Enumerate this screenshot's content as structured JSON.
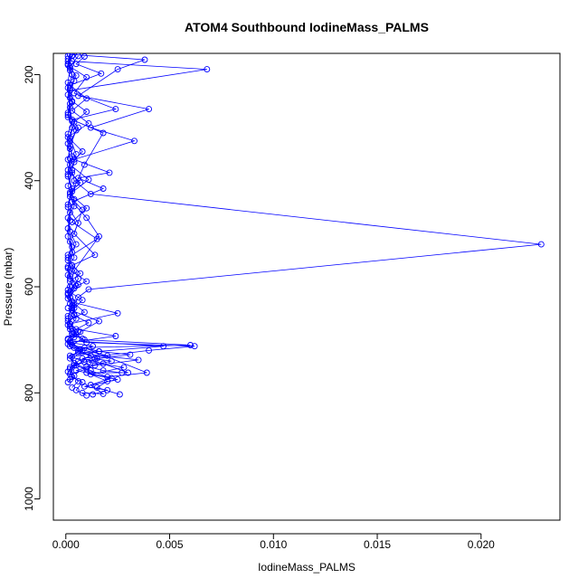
{
  "chart_data": {
    "type": "line",
    "title": "ATOM4 Southbound IodineMass_PALMS",
    "xlabel": "IodineMass_PALMS",
    "ylabel": "Pressure (mbar)",
    "xlim": [
      -0.0006,
      0.0238
    ],
    "ylim": [
      1040,
      160
    ],
    "y_reversed": true,
    "grid": false,
    "x_ticks": [
      {
        "value": 0.0,
        "label": "0.000"
      },
      {
        "value": 0.005,
        "label": "0.005"
      },
      {
        "value": 0.01,
        "label": "0.010"
      },
      {
        "value": 0.015,
        "label": "0.015"
      },
      {
        "value": 0.02,
        "label": "0.020"
      }
    ],
    "y_ticks": [
      {
        "value": 200,
        "label": "200"
      },
      {
        "value": 400,
        "label": "400"
      },
      {
        "value": 600,
        "label": "600"
      },
      {
        "value": 800,
        "label": "800"
      },
      {
        "value": 1000,
        "label": "1000"
      }
    ],
    "series_color": "#0000ff",
    "series": [
      {
        "points": [
          [
            0.001,
            805
          ],
          [
            0.0005,
            795
          ],
          [
            0.0008,
            780
          ],
          [
            0.0003,
            770
          ],
          [
            0.0002,
            755
          ],
          [
            0.0006,
            740
          ],
          [
            0.0012,
            730
          ],
          [
            0.0004,
            715
          ],
          [
            0.006,
            710
          ],
          [
            0.0009,
            700
          ],
          [
            0.0003,
            690
          ],
          [
            0.0002,
            675
          ],
          [
            0.0005,
            660
          ],
          [
            0.0003,
            640
          ],
          [
            0.0006,
            620
          ],
          [
            0.0011,
            605
          ],
          [
            0.0229,
            520
          ],
          [
            0.0012,
            425
          ],
          [
            0.0004,
            400
          ],
          [
            0.0003,
            380
          ],
          [
            0.0005,
            350
          ],
          [
            0.0002,
            320
          ],
          [
            0.0004,
            290
          ],
          [
            0.001,
            270
          ],
          [
            0.0003,
            250
          ],
          [
            0.0002,
            230
          ],
          [
            0.0068,
            190
          ],
          [
            0.0003,
            175
          ],
          [
            0.0001,
            165
          ]
        ]
      },
      {
        "points": [
          [
            0.0026,
            803
          ],
          [
            0.0015,
            790
          ],
          [
            0.002,
            778
          ],
          [
            0.001,
            762
          ],
          [
            0.003,
            762
          ],
          [
            0.0018,
            745
          ],
          [
            0.0008,
            735
          ],
          [
            0.004,
            720
          ],
          [
            0.0062,
            712
          ],
          [
            0.001,
            705
          ],
          [
            0.0005,
            690
          ],
          [
            0.0002,
            670
          ],
          [
            0.0025,
            650
          ],
          [
            0.0004,
            630
          ],
          [
            0.0002,
            600
          ],
          [
            0.0004,
            570
          ],
          [
            0.0016,
            505
          ],
          [
            0.001,
            470
          ],
          [
            0.0003,
            440
          ],
          [
            0.0018,
            415
          ],
          [
            0.0006,
            395
          ],
          [
            0.0021,
            385
          ],
          [
            0.0004,
            360
          ],
          [
            0.0033,
            325
          ],
          [
            0.0012,
            300
          ],
          [
            0.004,
            265
          ],
          [
            0.0006,
            240
          ],
          [
            0.0025,
            190
          ],
          [
            0.0038,
            172
          ],
          [
            0.0002,
            162
          ]
        ]
      },
      {
        "points": [
          [
            0.0008,
            800
          ],
          [
            0.0018,
            802
          ],
          [
            0.0012,
            785
          ],
          [
            0.0022,
            772
          ],
          [
            0.0005,
            758
          ],
          [
            0.0014,
            748
          ],
          [
            0.0035,
            738
          ],
          [
            0.0006,
            725
          ],
          [
            0.0047,
            712
          ],
          [
            0.0002,
            702
          ],
          [
            0.0007,
            685
          ],
          [
            0.0016,
            665
          ],
          [
            0.0003,
            645
          ],
          [
            0.0008,
            625
          ],
          [
            0.0002,
            610
          ],
          [
            0.0006,
            585
          ],
          [
            0.0003,
            560
          ],
          [
            0.0014,
            540
          ],
          [
            0.0004,
            500
          ],
          [
            0.0008,
            455
          ],
          [
            0.0002,
            430
          ],
          [
            0.0005,
            405
          ],
          [
            0.0009,
            370
          ],
          [
            0.0018,
            310
          ],
          [
            0.0003,
            285
          ],
          [
            0.0024,
            265
          ],
          [
            0.0004,
            235
          ],
          [
            0.001,
            205
          ],
          [
            0.0002,
            185
          ],
          [
            0.0006,
            165
          ]
        ]
      },
      {
        "points": [
          [
            0.0001,
            780
          ],
          [
            0.0004,
            768
          ],
          [
            0.0002,
            752
          ],
          [
            0.0009,
            742
          ],
          [
            0.0003,
            732
          ],
          [
            0.0016,
            722
          ],
          [
            0.0001,
            708
          ],
          [
            0.0004,
            695
          ],
          [
            0.0002,
            680
          ],
          [
            0.0001,
            660
          ],
          [
            0.0003,
            635
          ],
          [
            0.0001,
            612
          ],
          [
            0.0002,
            590
          ],
          [
            0.0007,
            575
          ],
          [
            0.0001,
            550
          ],
          [
            0.0003,
            525
          ],
          [
            0.0001,
            490
          ],
          [
            0.0002,
            460
          ],
          [
            0.0004,
            435
          ],
          [
            0.0001,
            410
          ],
          [
            0.0003,
            385
          ],
          [
            0.0001,
            360
          ],
          [
            0.0002,
            335
          ],
          [
            0.0005,
            305
          ],
          [
            0.0001,
            280
          ],
          [
            0.0002,
            255
          ],
          [
            0.0001,
            225
          ],
          [
            0.0003,
            200
          ],
          [
            0.0001,
            180
          ],
          [
            0.0002,
            163
          ]
        ]
      },
      {
        "points": [
          [
            0.0002,
            775
          ],
          [
            0.0001,
            760
          ],
          [
            0.0005,
            748
          ],
          [
            0.0002,
            735
          ],
          [
            0.0007,
            718
          ],
          [
            0.0001,
            700
          ],
          [
            0.0003,
            688
          ],
          [
            0.0001,
            672
          ],
          [
            0.0004,
            652
          ],
          [
            0.0002,
            632
          ],
          [
            0.0001,
            615
          ],
          [
            0.0005,
            598
          ],
          [
            0.0002,
            580
          ],
          [
            0.0001,
            562
          ],
          [
            0.0004,
            545
          ],
          [
            0.0002,
            515
          ],
          [
            0.0006,
            480
          ],
          [
            0.0001,
            450
          ],
          [
            0.0003,
            420
          ],
          [
            0.0001,
            392
          ],
          [
            0.0004,
            365
          ],
          [
            0.0002,
            340
          ],
          [
            0.0001,
            312
          ],
          [
            0.0003,
            288
          ],
          [
            0.0002,
            262
          ],
          [
            0.0001,
            238
          ],
          [
            0.0004,
            212
          ],
          [
            0.0002,
            192
          ],
          [
            0.0001,
            175
          ],
          [
            0.0003,
            165
          ]
        ]
      },
      {
        "points": [
          [
            0.0013,
            803
          ],
          [
            0.002,
            795
          ],
          [
            0.0009,
            788
          ],
          [
            0.0025,
            775
          ],
          [
            0.0012,
            765
          ],
          [
            0.0028,
            752
          ],
          [
            0.0011,
            742
          ],
          [
            0.002,
            730
          ],
          [
            0.0007,
            718
          ],
          [
            0.0013,
            712
          ],
          [
            0.0002,
            705
          ],
          [
            0.0024,
            693
          ],
          [
            0.0005,
            680
          ],
          [
            0.0001,
            665
          ],
          [
            0.0009,
            648
          ],
          [
            0.0003,
            628
          ],
          [
            0.0001,
            606
          ],
          [
            0.001,
            590
          ],
          [
            0.0002,
            568
          ],
          [
            0.0001,
            545
          ],
          [
            0.0015,
            510
          ],
          [
            0.0003,
            478
          ],
          [
            0.001,
            452
          ],
          [
            0.0002,
            425
          ],
          [
            0.0011,
            398
          ],
          [
            0.0002,
            370
          ],
          [
            0.0008,
            345
          ],
          [
            0.0001,
            318
          ],
          [
            0.0011,
            292
          ],
          [
            0.0003,
            268
          ],
          [
            0.001,
            245
          ],
          [
            0.0002,
            220
          ],
          [
            0.0017,
            198
          ],
          [
            0.0005,
            180
          ],
          [
            0.0009,
            166
          ]
        ]
      },
      {
        "points": [
          [
            0.0003,
            790
          ],
          [
            0.0006,
            778
          ],
          [
            0.0002,
            765
          ],
          [
            0.001,
            755
          ],
          [
            0.0004,
            744
          ],
          [
            0.0002,
            730
          ],
          [
            0.0008,
            720
          ],
          [
            0.0003,
            710
          ],
          [
            0.0001,
            698
          ],
          [
            0.0006,
            685
          ],
          [
            0.0002,
            670
          ],
          [
            0.0001,
            655
          ],
          [
            0.0003,
            640
          ],
          [
            0.0001,
            622
          ],
          [
            0.0004,
            603
          ],
          [
            0.0002,
            585
          ],
          [
            0.0001,
            565
          ],
          [
            0.0003,
            535
          ],
          [
            0.0001,
            505
          ],
          [
            0.0002,
            475
          ],
          [
            0.0001,
            445
          ],
          [
            0.0003,
            415
          ],
          [
            0.0001,
            388
          ],
          [
            0.0002,
            358
          ],
          [
            0.0001,
            330
          ],
          [
            0.0003,
            300
          ],
          [
            0.0001,
            272
          ],
          [
            0.0002,
            244
          ],
          [
            0.0001,
            215
          ],
          [
            0.0002,
            188
          ],
          [
            0.0001,
            170
          ]
        ]
      },
      {
        "points": [
          [
            0.0027,
            762
          ],
          [
            0.0018,
            758
          ],
          [
            0.001,
            750
          ],
          [
            0.0022,
            740
          ],
          [
            0.0014,
            736
          ],
          [
            0.0031,
            728
          ],
          [
            0.0016,
            722
          ],
          [
            0.0009,
            715
          ],
          [
            0.0039,
            762
          ],
          [
            0.002,
            770
          ],
          [
            0.0012,
            758
          ],
          [
            0.0004,
            748
          ],
          [
            0.0015,
            735
          ],
          [
            0.0006,
            722
          ],
          [
            0.0002,
            712
          ],
          [
            0.0008,
            698
          ],
          [
            0.0003,
            684
          ],
          [
            0.0011,
            668
          ],
          [
            0.0004,
            654
          ],
          [
            0.0001,
            640
          ]
        ]
      },
      {
        "points": [
          [
            0.0004,
            640
          ],
          [
            0.0002,
            620
          ],
          [
            0.0006,
            596
          ],
          [
            0.0001,
            578
          ],
          [
            0.0003,
            560
          ],
          [
            0.0001,
            540
          ],
          [
            0.0005,
            520
          ],
          [
            0.0002,
            496
          ],
          [
            0.0001,
            470
          ],
          [
            0.0004,
            448
          ],
          [
            0.0002,
            422
          ],
          [
            0.0007,
            404
          ],
          [
            0.0001,
            380
          ],
          [
            0.0003,
            354
          ],
          [
            0.0002,
            326
          ],
          [
            0.0006,
            300
          ],
          [
            0.0001,
            276
          ],
          [
            0.0003,
            252
          ],
          [
            0.0002,
            226
          ],
          [
            0.0005,
            202
          ],
          [
            0.0001,
            182
          ],
          [
            0.0003,
            164
          ]
        ]
      }
    ]
  }
}
